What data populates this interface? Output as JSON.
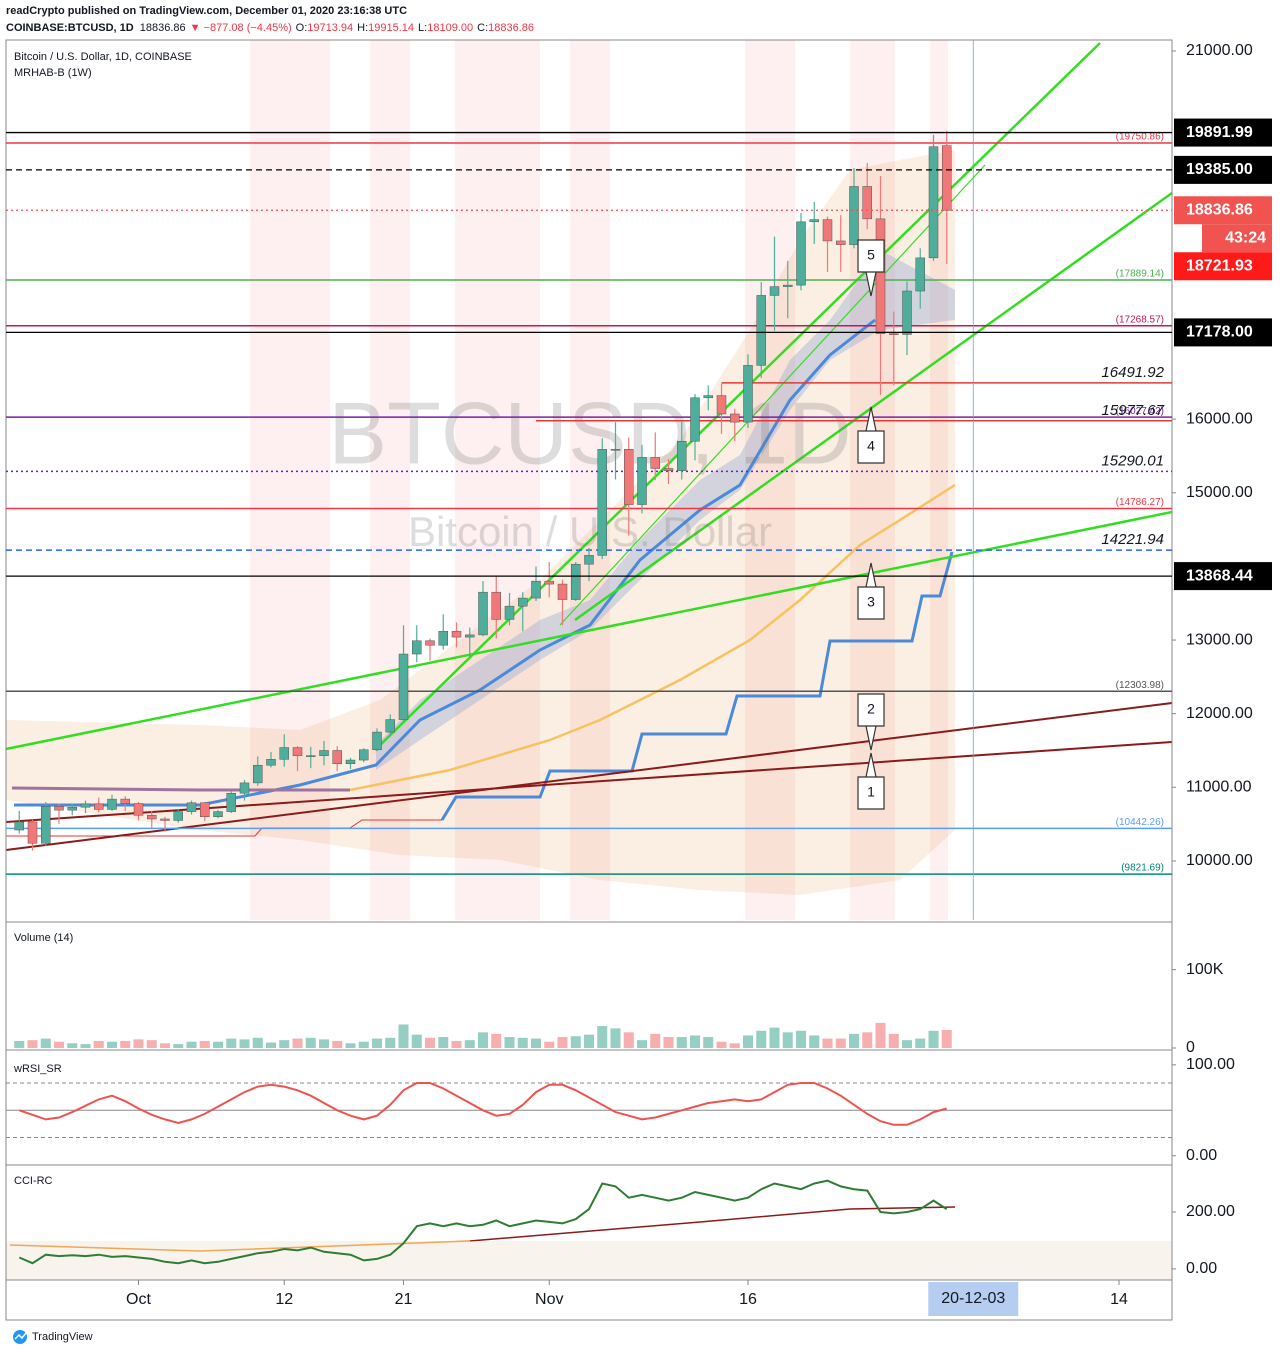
{
  "header": {
    "publisher": "readCrypto published on TradingView.com, December 01, 2020 23:16:38 UTC",
    "symbol": "COINBASE:BTCUSD, 1D",
    "last": "18836.86",
    "change": "▼ −877.08 (−4.45%)",
    "ohlc": [
      {
        "label": "O:",
        "value": "19713.94"
      },
      {
        "label": "H:",
        "value": "19915.14"
      },
      {
        "label": "L:",
        "value": "18109.00"
      },
      {
        "label": "C:",
        "value": "18836.86"
      }
    ]
  },
  "footer": "TradingView",
  "chart_data": [
    {
      "type": "candlestick",
      "title": "Bitcoin / U.S. Dollar, 1D, COINBASE",
      "subtitle": "MRHAB-B (1W)",
      "watermark": [
        "BTCUSD, 1D",
        "Bitcoin / U.S. Dollar"
      ],
      "up_color": "#4fae9b",
      "down_color": "#f07878",
      "x": [
        "2020-09-22",
        "2020-09-23",
        "2020-09-24",
        "2020-09-25",
        "2020-09-26",
        "2020-09-27",
        "2020-09-28",
        "2020-09-29",
        "2020-09-30",
        "2020-10-01",
        "2020-10-02",
        "2020-10-03",
        "2020-10-04",
        "2020-10-05",
        "2020-10-06",
        "2020-10-07",
        "2020-10-08",
        "2020-10-09",
        "2020-10-10",
        "2020-10-11",
        "2020-10-12",
        "2020-10-13",
        "2020-10-14",
        "2020-10-15",
        "2020-10-16",
        "2020-10-17",
        "2020-10-18",
        "2020-10-19",
        "2020-10-20",
        "2020-10-21",
        "2020-10-22",
        "2020-10-23",
        "2020-10-24",
        "2020-10-25",
        "2020-10-26",
        "2020-10-27",
        "2020-10-28",
        "2020-10-29",
        "2020-10-30",
        "2020-10-31",
        "2020-11-01",
        "2020-11-02",
        "2020-11-03",
        "2020-11-04",
        "2020-11-05",
        "2020-11-06",
        "2020-11-07",
        "2020-11-08",
        "2020-11-09",
        "2020-11-10",
        "2020-11-11",
        "2020-11-12",
        "2020-11-13",
        "2020-11-14",
        "2020-11-15",
        "2020-11-16",
        "2020-11-17",
        "2020-11-18",
        "2020-11-19",
        "2020-11-20",
        "2020-11-21",
        "2020-11-22",
        "2020-11-23",
        "2020-11-24",
        "2020-11-25",
        "2020-11-26",
        "2020-11-27",
        "2020-11-28",
        "2020-11-29",
        "2020-11-30",
        "2020-12-01"
      ],
      "open": [
        10420,
        10530,
        10240,
        10740,
        10690,
        10730,
        10775,
        10700,
        10840,
        10780,
        10620,
        10570,
        10550,
        10670,
        10790,
        10600,
        10670,
        10920,
        11060,
        11300,
        11380,
        11540,
        11430,
        11430,
        11500,
        11320,
        11370,
        11510,
        11750,
        11920,
        12810,
        12990,
        12930,
        13120,
        13040,
        13070,
        13650,
        13280,
        13460,
        13570,
        13800,
        13760,
        13550,
        14030,
        14150,
        15590,
        15590,
        14840,
        15480,
        15330,
        15300,
        15700,
        16290,
        16320,
        16070,
        15960,
        16730,
        17680,
        17800,
        17820,
        18680,
        18710,
        18420,
        18370,
        19160,
        18720,
        17160,
        17150,
        17740,
        18190,
        19713.94
      ],
      "high": [
        10680,
        10560,
        10800,
        10780,
        10780,
        10820,
        10860,
        10900,
        10880,
        10800,
        10680,
        10600,
        10700,
        10820,
        10800,
        10690,
        10950,
        11100,
        11420,
        11480,
        11720,
        11560,
        11550,
        11630,
        11560,
        11400,
        11530,
        11800,
        11990,
        13200,
        13200,
        13020,
        13350,
        13240,
        13170,
        13800,
        13860,
        13640,
        13650,
        14000,
        14060,
        13820,
        14060,
        14250,
        15740,
        15960,
        15750,
        15650,
        15820,
        15460,
        15970,
        16340,
        16460,
        16480,
        16140,
        16880,
        17860,
        18480,
        18150,
        18800,
        18950,
        18750,
        18770,
        19410,
        19480,
        19300,
        17460,
        17870,
        18320,
        19860,
        19915.14
      ],
      "low": [
        10370,
        10140,
        10200,
        10500,
        10620,
        10650,
        10660,
        10680,
        10680,
        10550,
        10450,
        10400,
        10520,
        10630,
        10540,
        10580,
        10650,
        10820,
        11020,
        11270,
        11280,
        11220,
        11260,
        11300,
        11220,
        11250,
        11340,
        11490,
        11690,
        11880,
        12700,
        12720,
        12870,
        12900,
        12770,
        13050,
        13020,
        13200,
        13120,
        13530,
        13580,
        13200,
        13530,
        13800,
        14100,
        15180,
        14420,
        14720,
        15170,
        15120,
        15180,
        15440,
        16120,
        15800,
        15700,
        15880,
        16560,
        17200,
        17370,
        17750,
        18380,
        18000,
        18000,
        18320,
        18580,
        16330,
        16460,
        16870,
        17500,
        18150,
        18109.0
      ],
      "close": [
        10530,
        10240,
        10740,
        10690,
        10730,
        10775,
        10700,
        10840,
        10780,
        10620,
        10570,
        10550,
        10670,
        10790,
        10600,
        10670,
        10920,
        11060,
        11300,
        11380,
        11540,
        11430,
        11430,
        11500,
        11320,
        11370,
        11510,
        11750,
        11920,
        12810,
        12990,
        12930,
        13120,
        13040,
        13070,
        13650,
        13280,
        13460,
        13570,
        13800,
        13760,
        13550,
        14030,
        14150,
        15590,
        15590,
        14840,
        15480,
        15330,
        15300,
        15700,
        16290,
        16320,
        16070,
        15960,
        16730,
        17680,
        17800,
        17820,
        18680,
        18710,
        18420,
        18370,
        19160,
        18720,
        17160,
        17150,
        17740,
        18190,
        19700,
        18836.86
      ],
      "xlim": [
        "2020-09-21",
        "2020-12-18"
      ],
      "ylim": [
        9198,
        21149
      ],
      "yticks": [
        {
          "value": 21000,
          "label": "21000.00"
        },
        {
          "value": 16000,
          "label": "16000.00"
        },
        {
          "value": 15000,
          "label": "15000.00"
        },
        {
          "value": 13000,
          "label": "13000.00"
        },
        {
          "value": 12000,
          "label": "12000.00"
        },
        {
          "value": 11000,
          "label": "11000.00"
        },
        {
          "value": 10000,
          "label": "10000.00"
        }
      ],
      "grid": false,
      "levels": [
        {
          "value": 19750.86,
          "label": "(19750.86)",
          "color": "#f23645",
          "dash": "solid"
        },
        {
          "value": 17889.14,
          "label": "(17889.14)",
          "color": "#4caf50",
          "dash": "solid"
        },
        {
          "value": 17268.57,
          "label": "(17268.57)",
          "color": "#c2185b",
          "dash": "solid"
        },
        {
          "value": 16491.92,
          "label": "16491.92",
          "color": "#e53935",
          "dash": "solid",
          "from": "2020-11-14"
        },
        {
          "value": 16027.42,
          "label": "(16027.42)",
          "color": "#7b1fa2",
          "dash": "solid"
        },
        {
          "value": 15977.67,
          "label": "15977.67",
          "color": "#e53935",
          "dash": "solid",
          "from": "2020-10-31"
        },
        {
          "value": 15290.01,
          "label": "15290.01",
          "color": "#6a1be0",
          "dash": "dotted"
        },
        {
          "value": 14786.27,
          "label": "(14786.27)",
          "color": "#f23645",
          "dash": "solid"
        },
        {
          "value": 14221.94,
          "label": "14221.94",
          "color": "#2962ff",
          "dash": "dashed"
        },
        {
          "value": 12303.98,
          "label": "(12303.98)",
          "color": "#555555",
          "dash": "solid"
        },
        {
          "value": 10442.26,
          "label": "(10442.26)",
          "color": "#5b9cf6",
          "dash": "solid"
        },
        {
          "value": 9821.69,
          "label": "(9821.69)",
          "color": "#00897b",
          "dash": "solid"
        }
      ],
      "badges": [
        {
          "value": 19891.99,
          "label": "19891.99",
          "color": "#000000",
          "dash": "solid"
        },
        {
          "value": 19385.0,
          "label": "19385.00",
          "color": "#000000",
          "dash": "dashed"
        },
        {
          "value": 18836.86,
          "label": "18836.86",
          "color": "#f05350",
          "dash": "dotted",
          "sub": "43:24"
        },
        {
          "value": 18721.93,
          "label": "18721.93",
          "color": "#ff1a1a",
          "dash": "none"
        },
        {
          "value": 17178.0,
          "label": "17178.00",
          "color": "#000000",
          "dash": "solid"
        },
        {
          "value": 13868.44,
          "label": "13868.44",
          "color": "#000000",
          "dash": "solid"
        }
      ],
      "annotations": [
        "5",
        "4",
        "3",
        "2",
        "1"
      ],
      "cursor": {
        "value": "2020-12-03",
        "label": "20-12-03"
      }
    },
    {
      "type": "bar",
      "title": "Volume (14)",
      "values": [
        9000,
        10000,
        12000,
        8000,
        6000,
        5000,
        9000,
        8000,
        9000,
        11000,
        10000,
        6000,
        5000,
        8000,
        9000,
        8000,
        12000,
        11000,
        13000,
        7000,
        10000,
        12000,
        13000,
        11000,
        9000,
        6000,
        8000,
        12000,
        13000,
        30000,
        17000,
        13000,
        14000,
        9000,
        10000,
        20000,
        18000,
        14000,
        13000,
        12000,
        8000,
        14000,
        15000,
        17000,
        28000,
        25000,
        20000,
        10000,
        18000,
        14000,
        14000,
        16000,
        14000,
        8000,
        6000,
        16000,
        22000,
        26000,
        20000,
        22000,
        16000,
        12000,
        12000,
        18000,
        20000,
        32000,
        18000,
        10000,
        12000,
        22000,
        23000
      ],
      "ylim": [
        0,
        157000
      ],
      "yticks": [
        {
          "value": 100000,
          "label": "100K"
        },
        0
      ]
    },
    {
      "type": "line",
      "title": "wRSI_SR",
      "color": "#ef5350",
      "values": [
        50,
        45,
        40,
        42,
        48,
        55,
        62,
        66,
        60,
        52,
        45,
        40,
        36,
        40,
        46,
        54,
        62,
        70,
        76,
        78,
        76,
        72,
        66,
        58,
        50,
        44,
        40,
        44,
        56,
        72,
        80,
        80,
        74,
        66,
        58,
        50,
        44,
        46,
        56,
        70,
        78,
        78,
        72,
        64,
        56,
        48,
        44,
        40,
        42,
        46,
        50,
        54,
        58,
        60,
        62,
        60,
        62,
        70,
        78,
        80,
        80,
        74,
        66,
        56,
        46,
        38,
        34,
        34,
        40,
        48,
        52
      ],
      "ylim": [
        -8,
        113
      ],
      "yticks": [
        {
          "value": 100,
          "label": "100.00"
        },
        {
          "value": 0,
          "label": "0.00"
        }
      ],
      "levels": [
        20,
        50,
        80
      ]
    },
    {
      "type": "line",
      "title": "CCI-RC",
      "color": "#2e7d32",
      "values": [
        40,
        20,
        50,
        45,
        48,
        45,
        50,
        42,
        45,
        40,
        35,
        25,
        20,
        30,
        20,
        25,
        35,
        45,
        55,
        60,
        70,
        65,
        75,
        60,
        55,
        50,
        30,
        35,
        50,
        90,
        150,
        160,
        150,
        160,
        150,
        155,
        170,
        150,
        160,
        170,
        165,
        160,
        175,
        210,
        300,
        290,
        250,
        260,
        250,
        240,
        250,
        270,
        260,
        250,
        240,
        250,
        280,
        300,
        290,
        280,
        300,
        310,
        290,
        280,
        275,
        200,
        195,
        200,
        210,
        240,
        210
      ],
      "ylim": [
        -39,
        358
      ],
      "yticks": [
        {
          "value": 200,
          "label": "200.00"
        },
        {
          "value": 0,
          "label": "0.00"
        }
      ],
      "xticks": [
        {
          "value": "2020-10-01",
          "label": "Oct"
        },
        {
          "value": "2020-10-12",
          "label": "12"
        },
        {
          "value": "2020-10-21",
          "label": "21"
        },
        {
          "value": "2020-11-01",
          "label": "Nov"
        },
        {
          "value": "2020-11-16",
          "label": "16"
        },
        {
          "value": "2020-12-14",
          "label": "14"
        }
      ]
    }
  ]
}
